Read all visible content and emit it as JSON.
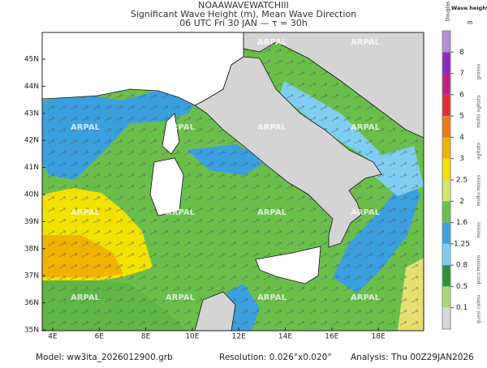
{
  "header": {
    "lines": [
      "NOAAWAVEWATCHIII",
      "Significant Wave Height (m), Mean Wave Direction",
      "06 UTC Fri 30 JAN  —  τ = 30h"
    ]
  },
  "map": {
    "lat_labels": [
      "45N",
      "44N",
      "43N",
      "42N",
      "41N",
      "40N",
      "39N",
      "38N",
      "37N",
      "36N",
      "35N"
    ],
    "lon_labels": [
      "4E",
      "6E",
      "8E",
      "10E",
      "12E",
      "14E",
      "16E",
      "18E"
    ],
    "watermark": "ARPAL"
  },
  "legend": {
    "title": "Wave height",
    "unit": "m",
    "scale_name": "Douglas",
    "labels": [
      "8",
      "7",
      "6",
      "5",
      "4",
      "3",
      "2.5",
      "2",
      "1.6",
      "1.25",
      "0.8",
      "0.5",
      "0.1"
    ],
    "colors": [
      "#b090d8",
      "#8a2cc0",
      "#c0208a",
      "#e03030",
      "#f07a20",
      "#f0b400",
      "#f2e200",
      "#d4e66c",
      "#6abf4b",
      "#3aa0e0",
      "#80cdf2",
      "#2f8f3a",
      "#a8d878",
      "#d8d8d8"
    ],
    "sea_states": [
      "grosso",
      "molto agitato",
      "agitato",
      "molto mosso",
      "mosso",
      "poco mosso",
      "quasi calmo"
    ]
  },
  "footer": {
    "model": "Model: ww3ita_2026012900.grb",
    "resolution": "Resolution: 0.026°x0.020°",
    "analysis": "Analysis: Thu 00Z29JAN2026"
  }
}
